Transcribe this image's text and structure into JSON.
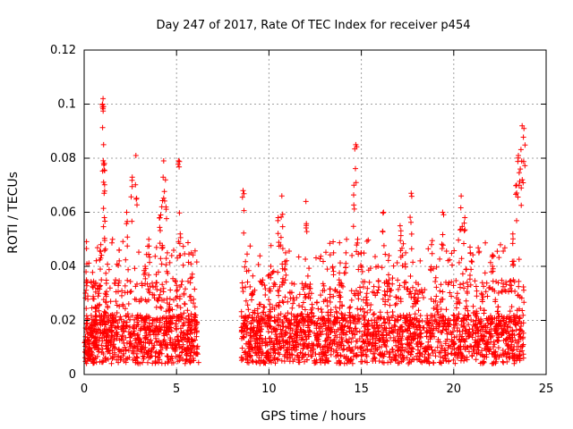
{
  "chart_data": {
    "type": "scatter",
    "title": "Day 247 of 2017, Rate Of TEC Index for receiver p454",
    "xlabel": "GPS time / hours",
    "ylabel": "ROTI / TECUs",
    "xlim": [
      0,
      25
    ],
    "ylim": [
      0,
      0.12
    ],
    "xticks": [
      0,
      5,
      10,
      15,
      20,
      25
    ],
    "xtick_labels": [
      "0",
      "5",
      "10",
      "15",
      "20",
      "25"
    ],
    "yticks": [
      0,
      0.02,
      0.04,
      0.06,
      0.08,
      0.1,
      0.12
    ],
    "ytick_labels": [
      "0",
      "0.02",
      "0.04",
      "0.06",
      "0.08",
      "0.1",
      "0.12"
    ],
    "grid": true,
    "marker": "+",
    "color": "#ff0000",
    "data_gap_hours": [
      6.2,
      8.5
    ],
    "series": [
      {
        "name": "ROTI",
        "x": [
          0.05,
          0.1,
          0.15,
          0.2,
          0.25,
          0.3,
          0.4,
          0.5,
          0.6,
          0.7,
          0.8,
          0.9,
          1.0,
          1.02,
          1.05,
          1.08,
          1.1,
          1.15,
          1.2,
          1.3,
          1.5,
          1.7,
          1.9,
          2.1,
          2.3,
          2.5,
          2.6,
          2.8,
          2.9,
          3.1,
          3.3,
          3.5,
          3.7,
          3.9,
          4.1,
          4.2,
          4.3,
          4.4,
          4.5,
          4.6,
          4.8,
          5.0,
          5.1,
          5.2,
          5.4,
          5.6,
          5.8,
          6.0,
          6.1,
          8.6,
          8.7,
          8.9,
          9.1,
          9.3,
          9.5,
          9.7,
          9.9,
          10.1,
          10.3,
          10.5,
          10.7,
          10.9,
          11.1,
          11.3,
          11.5,
          11.8,
          12.0,
          12.3,
          12.6,
          12.9,
          13.2,
          13.5,
          13.8,
          14.0,
          14.2,
          14.4,
          14.6,
          14.7,
          14.8,
          15.0,
          15.3,
          15.6,
          15.9,
          16.2,
          16.5,
          16.8,
          17.1,
          17.4,
          17.7,
          17.9,
          18.2,
          18.5,
          18.8,
          19.1,
          19.4,
          19.7,
          20.0,
          20.2,
          20.4,
          20.6,
          20.9,
          21.2,
          21.5,
          21.8,
          22.1,
          22.4,
          22.7,
          23.0,
          23.2,
          23.4,
          23.5,
          23.6,
          23.7,
          23.8
        ],
        "y": [
          0.012,
          0.038,
          0.02,
          0.015,
          0.01,
          0.009,
          0.018,
          0.012,
          0.025,
          0.013,
          0.03,
          0.048,
          0.1,
          0.102,
          0.085,
          0.067,
          0.078,
          0.03,
          0.015,
          0.012,
          0.02,
          0.035,
          0.042,
          0.018,
          0.06,
          0.015,
          0.073,
          0.081,
          0.022,
          0.012,
          0.04,
          0.05,
          0.02,
          0.037,
          0.058,
          0.062,
          0.079,
          0.072,
          0.045,
          0.025,
          0.012,
          0.033,
          0.079,
          0.052,
          0.03,
          0.015,
          0.045,
          0.025,
          0.01,
          0.068,
          0.02,
          0.012,
          0.03,
          0.015,
          0.01,
          0.025,
          0.008,
          0.04,
          0.02,
          0.058,
          0.066,
          0.045,
          0.02,
          0.012,
          0.018,
          0.025,
          0.064,
          0.03,
          0.015,
          0.01,
          0.02,
          0.045,
          0.035,
          0.02,
          0.05,
          0.025,
          0.07,
          0.085,
          0.05,
          0.045,
          0.03,
          0.015,
          0.04,
          0.06,
          0.035,
          0.02,
          0.055,
          0.045,
          0.067,
          0.03,
          0.015,
          0.01,
          0.048,
          0.025,
          0.06,
          0.02,
          0.012,
          0.03,
          0.066,
          0.058,
          0.045,
          0.02,
          0.03,
          0.012,
          0.04,
          0.025,
          0.02,
          0.015,
          0.052,
          0.07,
          0.081,
          0.076,
          0.092,
          0.091
        ]
      }
    ]
  }
}
